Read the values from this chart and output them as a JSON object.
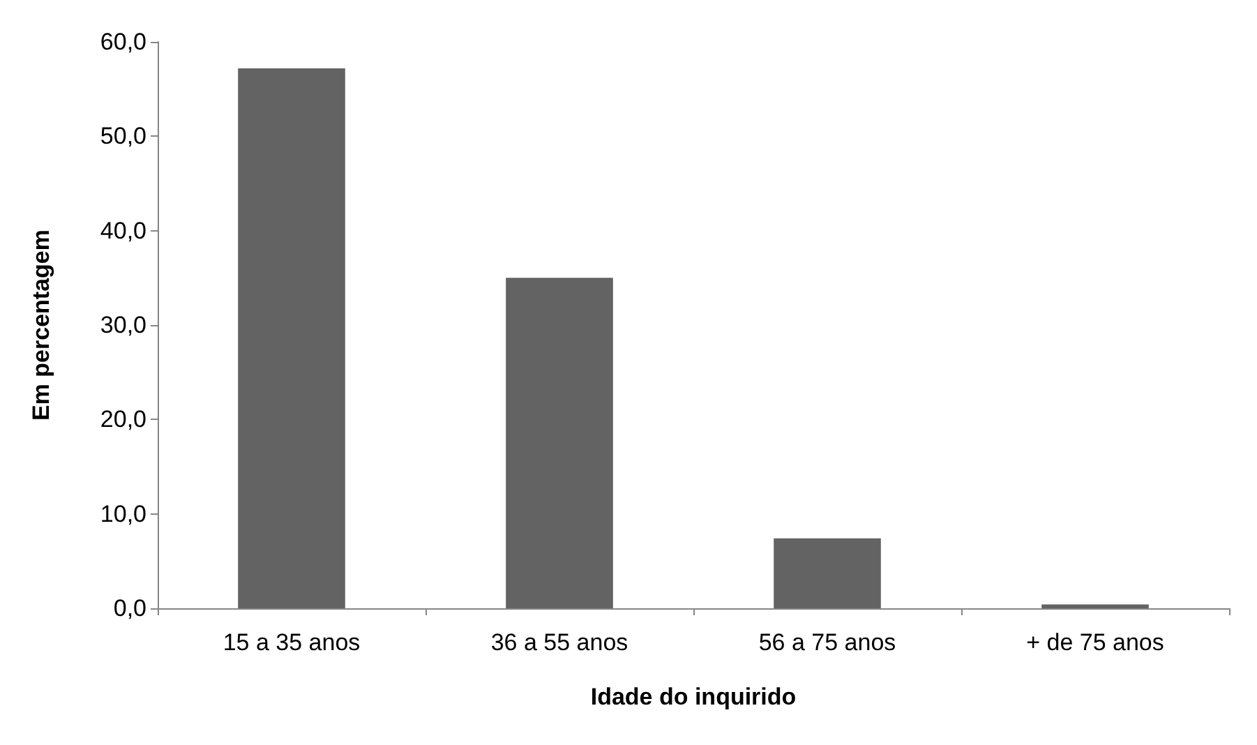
{
  "chart_data": {
    "type": "bar",
    "xlabel": "Idade do inquirido",
    "ylabel": "Em percentagem",
    "categories": [
      "15 a 35 anos",
      "36 a 55 anos",
      "56 a 75 anos",
      "+ de 75 anos"
    ],
    "values": [
      57.2,
      35.0,
      7.4,
      0.4
    ],
    "color": "#636363",
    "ylim": [
      0,
      60
    ],
    "yticks": [
      {
        "value": 0,
        "label": "0,0"
      },
      {
        "value": 10,
        "label": "10,0"
      },
      {
        "value": 20,
        "label": "20,0"
      },
      {
        "value": 30,
        "label": "30,0"
      },
      {
        "value": 40,
        "label": "40,0"
      },
      {
        "value": 50,
        "label": "50,0"
      },
      {
        "value": 60,
        "label": "60,0"
      }
    ],
    "grid": false
  }
}
